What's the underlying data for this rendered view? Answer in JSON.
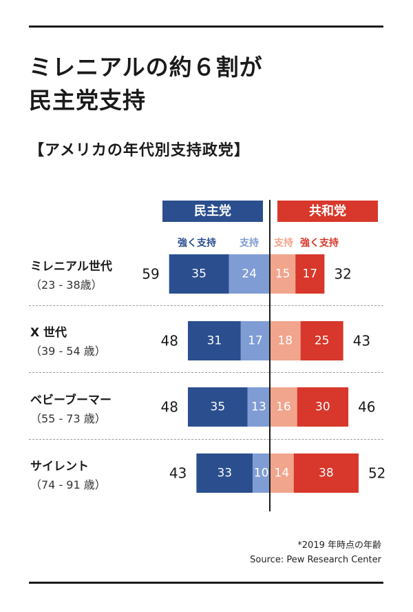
{
  "title_line1": "ミレニアルの約６割が",
  "title_line2": "民主党支持",
  "subtitle": "【アメリカの年代別支持政党】",
  "parties": {
    "dem": "民主党",
    "rep": "共和党"
  },
  "legend": {
    "dem_strong": "強く支持",
    "dem_lean": "支持",
    "rep_lean": "支持",
    "rep_strong": "強く支持"
  },
  "colors": {
    "dem_strong": "#2b4f8e",
    "dem_lean": "#7f9cd4",
    "rep_lean": "#f1a58d",
    "rep_strong": "#d8372b",
    "dem_label": "#2b4f8e",
    "rep_label": "#d8372b"
  },
  "chart_data": {
    "type": "bar",
    "orientation": "horizontal-diverging",
    "categories": [
      "ミレニアル世代",
      "X 世代",
      "ベビーブーマー",
      "サイレント"
    ],
    "age_ranges": [
      "（23 - 38歳）",
      "（39 - 54 歳）",
      "（55 - 73 歳）",
      "（74 - 91 歳）"
    ],
    "series": [
      {
        "name": "民主党 強く支持",
        "values": [
          35,
          31,
          35,
          33
        ]
      },
      {
        "name": "民主党 支持",
        "values": [
          24,
          17,
          13,
          10
        ]
      },
      {
        "name": "共和党 支持",
        "values": [
          15,
          18,
          16,
          14
        ]
      },
      {
        "name": "共和党 強く支持",
        "values": [
          17,
          25,
          30,
          38
        ]
      }
    ],
    "dem_totals": [
      59,
      48,
      48,
      43
    ],
    "rep_totals": [
      32,
      43,
      46,
      52
    ],
    "unit": "%"
  },
  "footnote": "*2019 年時点の年齢",
  "source": "Source: Pew Research Center"
}
